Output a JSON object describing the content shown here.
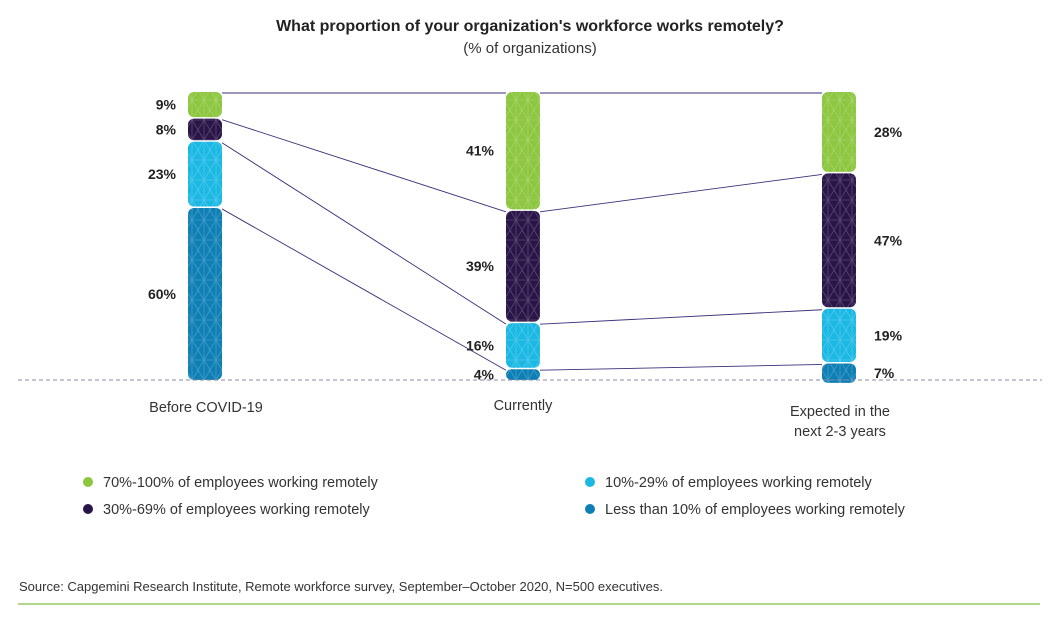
{
  "chart_data": {
    "type": "bar",
    "stacked": true,
    "title": "What proportion of your organization's workforce works remotely?",
    "subtitle": "(% of organizations)",
    "categories": [
      "Before COVID-19",
      "Currently",
      "Expected in the next 2-3 years"
    ],
    "category_labels": [
      [
        "Before COVID-19"
      ],
      [
        "Currently"
      ],
      [
        "Expected in the",
        "next 2-3 years"
      ]
    ],
    "series": [
      {
        "name": "70%-100% of employees working remotely",
        "values": [
          9,
          41,
          28
        ],
        "color": "#8dc63f"
      },
      {
        "name": "30%-69% of employees working remotely",
        "values": [
          8,
          39,
          47
        ],
        "color": "#2a1548"
      },
      {
        "name": "10%-29% of employees working remotely",
        "values": [
          23,
          16,
          19
        ],
        "color": "#1bb8e4"
      },
      {
        "name": "Less than 10% of employees working remotely",
        "values": [
          60,
          4,
          7
        ],
        "color": "#0e7fb5"
      }
    ],
    "data_labels": [
      [
        "9%",
        "8%",
        "23%",
        "60%"
      ],
      [
        "41%",
        "39%",
        "16%",
        "4%"
      ],
      [
        "28%",
        "47%",
        "19%",
        "7%"
      ]
    ],
    "ylim": [
      0,
      100
    ],
    "legend": {
      "placement": "bottom",
      "columns": [
        [
          "70%-100% of employees working remotely",
          "30%-69% of employees working remotely"
        ],
        [
          "10%-29% of employees working remotely",
          "Less than 10% of employees working remotely"
        ]
      ]
    },
    "source": "Source: Capgemini Research Institute, Remote workforce survey, September–October 2020, N=500 executives."
  },
  "colors": {
    "connector": "#3d2f7a",
    "baseline": "#8a8aa8",
    "rule": "#9cc862",
    "text": "#222222"
  }
}
